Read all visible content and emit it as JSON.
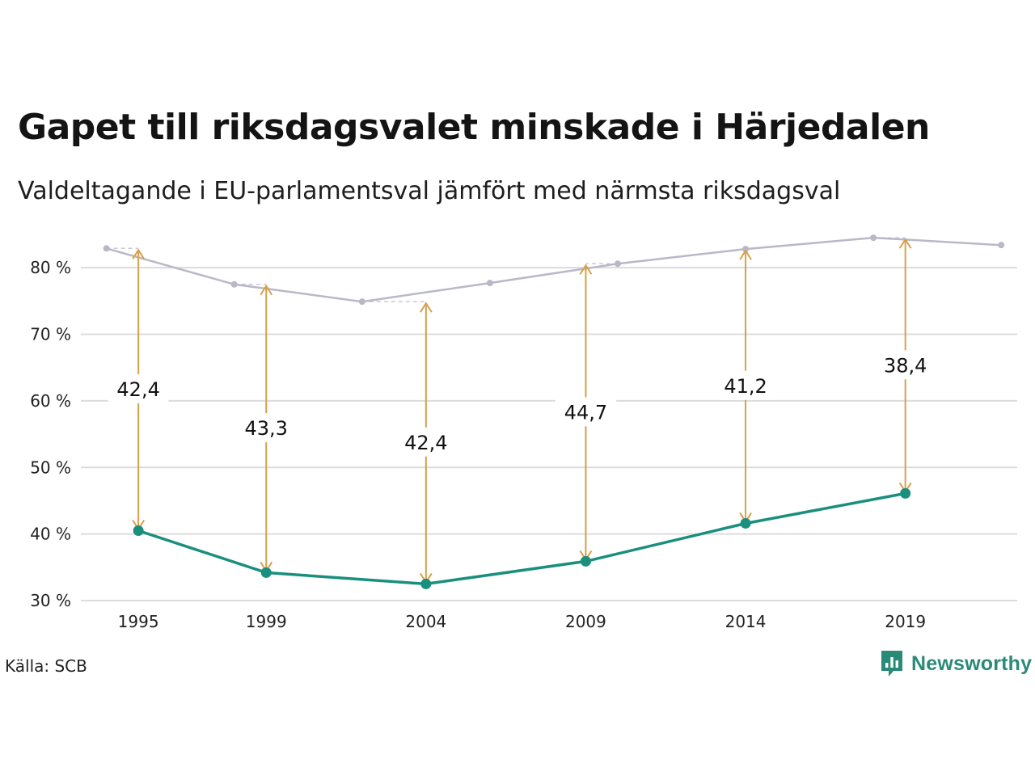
{
  "title": "Gapet till riksdagsvalet minskade i Härjedalen",
  "subtitle": "Valdeltagande i EU-parlamentsval jämfört med närmsta riksdagsval",
  "source": "Källa: SCB",
  "brand": "Newsworthy",
  "colors": {
    "eu": "#1a8f7e",
    "riksdag": "#b9b8c9",
    "arrow": "#d7a04a",
    "grid": "#dcdcdc"
  },
  "chart_data": {
    "type": "line",
    "ylim": [
      30,
      85
    ],
    "xlim": [
      1993.2,
      2022.5
    ],
    "y_ticks": [
      30,
      40,
      50,
      60,
      70,
      80
    ],
    "y_tick_labels": [
      "30 %",
      "40 %",
      "50 %",
      "60 %",
      "70 %",
      "80 %"
    ],
    "x_ticks": [
      1995,
      1999,
      2004,
      2009,
      2014,
      2019
    ],
    "x_tick_labels": [
      "1995",
      "1999",
      "2004",
      "2009",
      "2014",
      "2019"
    ],
    "series": [
      {
        "key": "riksdag",
        "points": [
          {
            "x": 1994,
            "y": 82.9
          },
          {
            "x": 1998,
            "y": 77.5
          },
          {
            "x": 2002,
            "y": 74.9
          },
          {
            "x": 2006,
            "y": 77.7
          },
          {
            "x": 2010,
            "y": 80.6
          },
          {
            "x": 2014,
            "y": 82.8
          },
          {
            "x": 2018,
            "y": 84.5
          },
          {
            "x": 2022,
            "y": 83.4
          }
        ]
      },
      {
        "key": "eu",
        "points": [
          {
            "x": 1995,
            "y": 40.5
          },
          {
            "x": 1999,
            "y": 34.2
          },
          {
            "x": 2004,
            "y": 32.5
          },
          {
            "x": 2009,
            "y": 35.9
          },
          {
            "x": 2014,
            "y": 41.6
          },
          {
            "x": 2019,
            "y": 46.1
          }
        ]
      }
    ],
    "gaps": [
      {
        "x": 1995,
        "from": 40.5,
        "to": 82.9,
        "label": "42,4"
      },
      {
        "x": 1999,
        "from": 34.2,
        "to": 77.5,
        "label": "43,3"
      },
      {
        "x": 2004,
        "from": 32.5,
        "to": 74.9,
        "label": "42,4"
      },
      {
        "x": 2009,
        "from": 35.9,
        "to": 80.6,
        "label": "44,7"
      },
      {
        "x": 2014,
        "from": 41.6,
        "to": 82.8,
        "label": "41,2"
      },
      {
        "x": 2019,
        "from": 46.1,
        "to": 84.5,
        "label": "38,4"
      }
    ]
  }
}
